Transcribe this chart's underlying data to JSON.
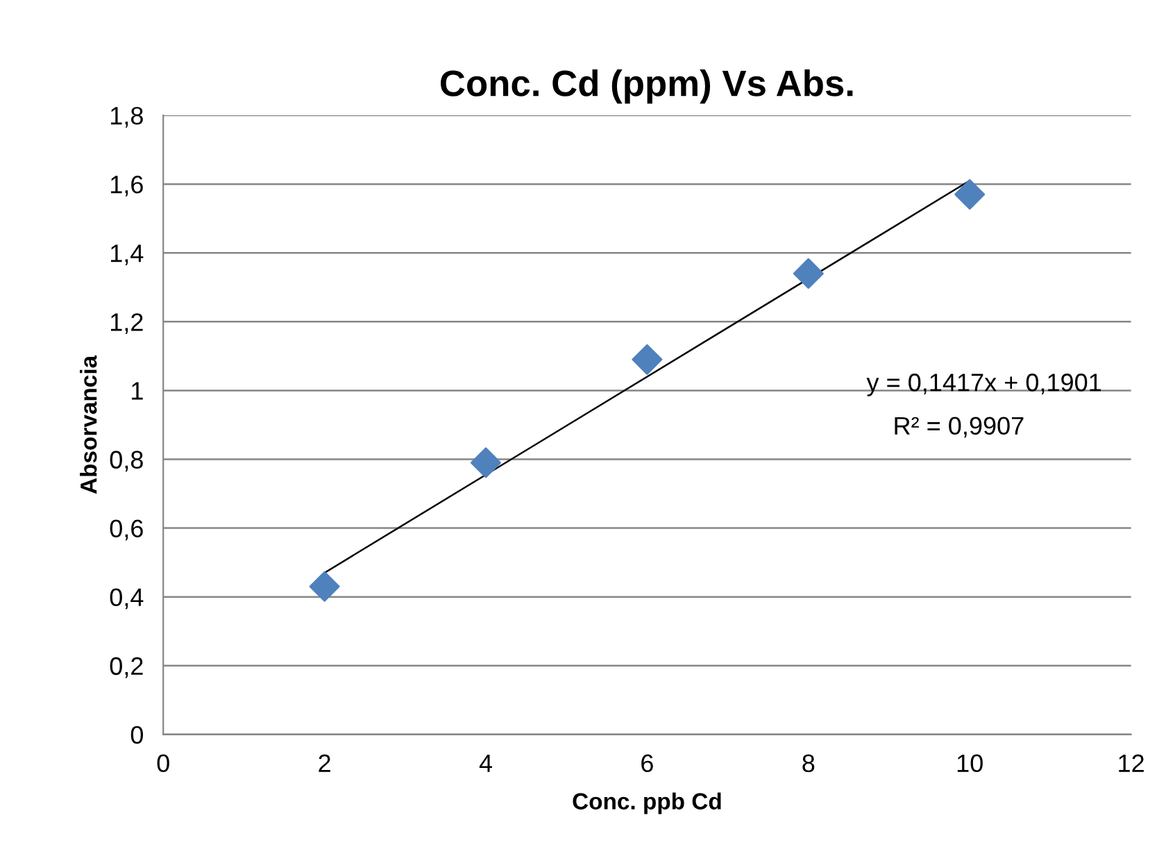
{
  "chart_data": {
    "type": "scatter",
    "title": "Conc. Cd (ppm) Vs Abs.",
    "xlabel": "Conc. ppb Cd",
    "ylabel": "Absorvancia",
    "x": [
      2,
      4,
      6,
      8,
      10
    ],
    "series": [
      {
        "color": "#4f81bd",
        "values": [
          0.43,
          0.79,
          1.09,
          1.34,
          1.57
        ],
        "marker": "diamond"
      },
      {
        "type": "line",
        "color": "#000000",
        "x": [
          2,
          10
        ],
        "values": [
          0.47,
          1.61
        ],
        "line_style": "solid"
      }
    ],
    "annotations": [
      "y = 0,1417x + 0,1901",
      "R² = 0,9907"
    ],
    "xlim": [
      0,
      12
    ],
    "xticks": [
      0,
      2,
      4,
      6,
      8,
      10,
      12
    ],
    "ylim": [
      0,
      1.8
    ],
    "yticks": [
      0,
      {
        "value": 0.2,
        "label": "0,2"
      },
      {
        "value": 0.4,
        "label": "0,4"
      },
      {
        "value": 0.6,
        "label": "0,6"
      },
      {
        "value": 0.8,
        "label": "0,8"
      },
      1,
      {
        "value": 1.2,
        "label": "1,2"
      },
      {
        "value": 1.4,
        "label": "1,4"
      },
      {
        "value": 1.6,
        "label": "1,6"
      },
      {
        "value": 1.8,
        "label": "1,8"
      }
    ],
    "grid": "y",
    "legend": false
  }
}
